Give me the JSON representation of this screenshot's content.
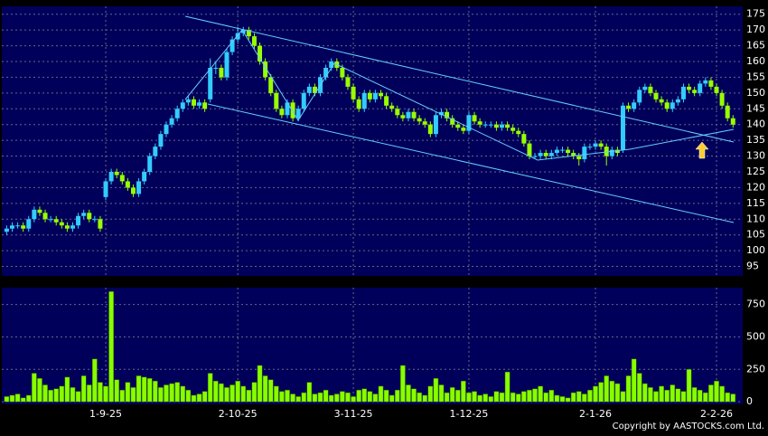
{
  "chart_data": {
    "type": "candlestick",
    "categories": [
      null,
      null,
      null,
      null,
      null,
      null,
      null,
      null,
      null,
      null,
      null,
      null,
      null,
      null,
      null,
      null,
      null,
      null,
      "1-9-25",
      null,
      null,
      null,
      null,
      null,
      null,
      null,
      null,
      null,
      null,
      null,
      null,
      null,
      null,
      null,
      null,
      null,
      null,
      null,
      null,
      null,
      null,
      null,
      "2-10-25",
      null,
      null,
      null,
      null,
      null,
      null,
      null,
      null,
      null,
      null,
      null,
      null,
      null,
      null,
      null,
      null,
      null,
      null,
      null,
      null,
      "3-11-25",
      null,
      null,
      null,
      null,
      null,
      null,
      null,
      null,
      null,
      null,
      null,
      null,
      null,
      null,
      null,
      null,
      null,
      null,
      null,
      null,
      "1-12-25",
      null,
      null,
      null,
      null,
      null,
      null,
      null,
      null,
      null,
      null,
      null,
      null,
      null,
      null,
      null,
      null,
      null,
      null,
      null,
      null,
      null,
      null,
      "2-1-26",
      null,
      null,
      null,
      null,
      null,
      null,
      null,
      null,
      null,
      null,
      null,
      null,
      null,
      null,
      null,
      null,
      null,
      null,
      null,
      null,
      null,
      "2-2-26",
      null,
      null,
      null
    ],
    "open": [
      106,
      107,
      108,
      108,
      107,
      110,
      113,
      112,
      110,
      110,
      109,
      108,
      107,
      108,
      111,
      112,
      110,
      110,
      117,
      122,
      125,
      124,
      122,
      120,
      118,
      122,
      125,
      130,
      133,
      137,
      140,
      142,
      145,
      147,
      148,
      146,
      147,
      148,
      158,
      158,
      155,
      163,
      167,
      169,
      170,
      168,
      165,
      160,
      155,
      150,
      145,
      143,
      147,
      142,
      145,
      150,
      152,
      150,
      155,
      158,
      160,
      158,
      155,
      152,
      148,
      145,
      150,
      148,
      150,
      149,
      146,
      145,
      143,
      142,
      144,
      142,
      141,
      140,
      137,
      143,
      144,
      142,
      140,
      139,
      138,
      143,
      141,
      140,
      140,
      140,
      139,
      140,
      139,
      138,
      137,
      134,
      130,
      130,
      131,
      130,
      131,
      132,
      132,
      131,
      130,
      129,
      133,
      133,
      134,
      133,
      130,
      132,
      132,
      146,
      145,
      147,
      151,
      152,
      150,
      148,
      147,
      145,
      147,
      148,
      152,
      151,
      150,
      153,
      154,
      152,
      150,
      146,
      142
    ],
    "high": [
      108,
      109,
      109,
      109,
      111,
      114,
      114,
      113,
      111,
      111,
      110,
      109,
      109,
      112,
      113,
      113,
      111,
      111,
      123,
      126,
      126,
      125,
      123,
      121,
      123,
      126,
      131,
      134,
      138,
      141,
      143,
      146,
      148,
      149,
      149,
      148,
      148,
      161,
      160,
      159,
      164,
      168,
      171,
      171,
      171,
      169,
      166,
      161,
      156,
      151,
      146,
      148,
      148,
      146,
      151,
      153,
      153,
      156,
      159,
      161,
      161,
      159,
      156,
      153,
      149,
      151,
      151,
      151,
      151,
      150,
      147,
      146,
      144,
      145,
      145,
      143,
      142,
      141,
      144,
      145,
      145,
      143,
      141,
      140,
      144,
      144,
      142,
      141,
      141,
      141,
      141,
      141,
      140,
      139,
      138,
      135,
      131,
      132,
      132,
      132,
      133,
      133,
      133,
      132,
      131,
      134,
      134,
      135,
      135,
      134,
      133,
      133,
      147,
      147,
      148,
      152,
      153,
      153,
      151,
      149,
      148,
      148,
      149,
      153,
      153,
      152,
      154,
      155,
      155,
      153,
      151,
      147,
      143
    ],
    "low": [
      105,
      106,
      107,
      106,
      106,
      109,
      111,
      109,
      109,
      108,
      107,
      106,
      106,
      107,
      110,
      109,
      109,
      106,
      116,
      121,
      123,
      121,
      119,
      117,
      117,
      121,
      124,
      129,
      132,
      136,
      139,
      141,
      144,
      146,
      145,
      145,
      144,
      147,
      156,
      154,
      154,
      162,
      166,
      168,
      167,
      164,
      159,
      154,
      149,
      144,
      142,
      142,
      141,
      141,
      144,
      149,
      149,
      149,
      154,
      157,
      157,
      154,
      151,
      147,
      144,
      144,
      147,
      147,
      148,
      145,
      144,
      142,
      141,
      141,
      141,
      140,
      139,
      136,
      136,
      142,
      141,
      139,
      138,
      137,
      137,
      140,
      139,
      139,
      139,
      138,
      138,
      138,
      137,
      136,
      133,
      129,
      129,
      129,
      129,
      129,
      130,
      131,
      130,
      129,
      127,
      128,
      132,
      132,
      132,
      127,
      129,
      130,
      131,
      144,
      144,
      146,
      150,
      149,
      147,
      146,
      144,
      144,
      146,
      147,
      150,
      149,
      149,
      152,
      151,
      149,
      145,
      141,
      139
    ],
    "close": [
      107,
      108,
      108,
      107,
      110,
      113,
      112,
      110,
      110,
      109,
      108,
      107,
      108,
      111,
      112,
      110,
      110,
      107,
      122,
      125,
      124,
      122,
      120,
      118,
      122,
      125,
      130,
      133,
      137,
      140,
      142,
      145,
      147,
      148,
      146,
      147,
      145,
      158,
      158,
      155,
      163,
      167,
      169,
      170,
      168,
      165,
      160,
      155,
      150,
      145,
      143,
      147,
      142,
      145,
      150,
      152,
      150,
      155,
      158,
      160,
      158,
      155,
      152,
      148,
      145,
      150,
      148,
      150,
      149,
      146,
      145,
      143,
      142,
      144,
      142,
      141,
      140,
      137,
      143,
      144,
      142,
      140,
      139,
      138,
      143,
      141,
      140,
      140,
      140,
      139,
      140,
      139,
      138,
      137,
      134,
      130,
      130,
      131,
      130,
      131,
      132,
      132,
      131,
      130,
      129,
      133,
      133,
      134,
      133,
      130,
      132,
      131,
      146,
      145,
      147,
      151,
      152,
      150,
      148,
      147,
      145,
      147,
      148,
      152,
      151,
      150,
      153,
      154,
      152,
      150,
      146,
      142,
      140
    ],
    "volume": [
      40,
      50,
      60,
      30,
      50,
      220,
      180,
      130,
      90,
      100,
      120,
      190,
      110,
      80,
      200,
      130,
      330,
      150,
      120,
      850,
      170,
      90,
      150,
      110,
      200,
      190,
      180,
      160,
      110,
      130,
      140,
      150,
      120,
      90,
      50,
      60,
      80,
      220,
      160,
      140,
      110,
      130,
      160,
      120,
      90,
      150,
      280,
      200,
      170,
      120,
      80,
      90,
      60,
      40,
      70,
      150,
      60,
      70,
      90,
      50,
      60,
      80,
      70,
      40,
      90,
      100,
      80,
      60,
      120,
      90,
      50,
      90,
      280,
      130,
      100,
      70,
      50,
      120,
      180,
      130,
      70,
      110,
      90,
      160,
      70,
      80,
      50,
      60,
      40,
      80,
      70,
      230,
      70,
      60,
      80,
      90,
      100,
      120,
      70,
      90,
      50,
      40,
      30,
      70,
      80,
      60,
      90,
      120,
      150,
      200,
      160,
      140,
      80,
      200,
      330,
      220,
      140,
      110,
      80,
      120,
      90,
      130,
      100,
      80,
      250,
      110,
      90,
      70,
      130,
      160,
      120,
      70,
      60
    ],
    "up_color": "#33ccff",
    "down_color": "#99ff00",
    "volume_color": "#88ff00",
    "ylim": [
      92,
      177.5
    ],
    "yticks": [
      95,
      100,
      105,
      110,
      115,
      120,
      125,
      130,
      135,
      140,
      145,
      150,
      155,
      160,
      165,
      170,
      175
    ],
    "volume_ylim": [
      -20,
      880
    ],
    "volume_yticks": [
      0,
      250,
      500,
      750
    ],
    "grid": true,
    "footer": "Copyright by AASTOCKS.com Ltd."
  }
}
